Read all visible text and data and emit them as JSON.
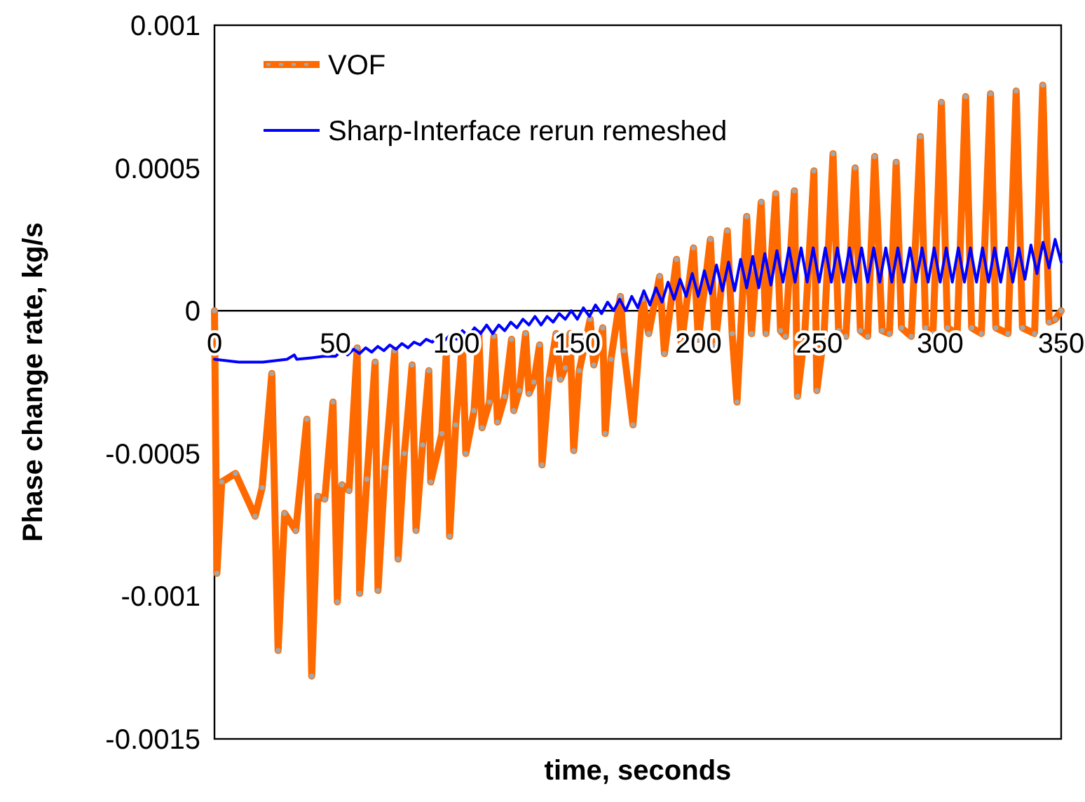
{
  "chart_data": {
    "type": "line",
    "xlabel": "time, seconds",
    "ylabel": "Phase change rate, kg/s",
    "xlim": [
      0,
      350
    ],
    "ylim": [
      -0.0015,
      0.001
    ],
    "xticks": [
      0,
      50,
      100,
      150,
      200,
      250,
      300,
      350
    ],
    "yticks": [
      -0.0015,
      -0.001,
      -0.0005,
      0,
      0.0005,
      0.001
    ],
    "grid": false,
    "legend": "top left",
    "series": [
      {
        "name": "VOF",
        "color": "#ff6a00",
        "marker": "circle",
        "x": [
          0,
          1,
          3,
          8.7,
          16.8,
          19.7,
          23.7,
          26.3,
          29,
          33.6,
          38.2,
          40.2,
          42.7,
          45.6,
          49,
          50.8,
          52.7,
          55.6,
          59,
          60,
          63,
          66.4,
          67.6,
          70.5,
          74.5,
          75.9,
          78.5,
          81.7,
          83.3,
          86,
          88.6,
          89.4,
          94,
          95.8,
          97.2,
          99.7,
          102.5,
          103.9,
          107.3,
          109.3,
          110.6,
          113.7,
          115.5,
          117,
          120,
          122.8,
          123.7,
          126,
          128.6,
          130,
          132,
          134.4,
          135.4,
          138.3,
          141.2,
          143,
          145,
          147,
          148.5,
          150.8,
          155.3,
          156.8,
          160.5,
          161.5,
          163.9,
          167.8,
          169.3,
          173,
          177,
          179.5,
          184,
          186,
          191,
          193,
          198,
          200,
          205,
          207,
          212,
          214,
          216,
          220,
          222,
          226,
          228,
          232,
          234,
          236,
          239.7,
          241,
          244,
          247.8,
          249,
          252,
          255.7,
          258,
          261,
          264.8,
          267,
          270,
          272.9,
          276,
          279,
          281.8,
          284,
          288,
          291.8,
          294,
          297,
          300.5,
          303,
          307,
          310.5,
          313,
          317,
          320.8,
          323,
          328,
          331.4,
          334,
          339,
          342.4,
          345,
          347.6,
          350
        ],
        "values": [
          0,
          -0.00092,
          -0.0006,
          -0.00057,
          -0.00072,
          -0.00062,
          -0.00022,
          -0.00119,
          -0.00071,
          -0.00077,
          -0.00038,
          -0.00128,
          -0.00065,
          -0.00066,
          -0.00032,
          -0.00102,
          -0.00061,
          -0.00063,
          -0.00013,
          -0.00099,
          -0.00059,
          -0.00018,
          -0.00098,
          -0.00055,
          -0.00014,
          -0.00087,
          -0.0005,
          -0.00019,
          -0.00077,
          -0.00047,
          -0.00021,
          -0.0006,
          -0.00043,
          -0.00015,
          -0.00079,
          -0.0004,
          -0.00011,
          -0.0005,
          -0.00035,
          -8e-05,
          -0.00041,
          -0.00032,
          -9e-05,
          -0.00039,
          -0.0003,
          -0.0001,
          -0.00035,
          -0.00028,
          -8e-05,
          -0.00029,
          -0.00025,
          -0.00012,
          -0.00054,
          -0.00024,
          -8e-05,
          -0.00024,
          -0.0002,
          -8e-05,
          -0.00049,
          -0.00021,
          -3e-05,
          -0.00019,
          -6e-05,
          -0.00043,
          -0.00017,
          5e-05,
          -0.00014,
          -0.0004,
          4e-05,
          -8e-05,
          0.00012,
          -0.00015,
          0.00018,
          -0.00012,
          0.00022,
          -0.0001,
          0.00025,
          -0.00012,
          0.00028,
          -8e-05,
          -0.00032,
          0.00033,
          -8e-05,
          0.00038,
          -8e-05,
          0.00041,
          -7e-05,
          -9e-05,
          0.00042,
          -0.0003,
          -8e-05,
          0.00049,
          -0.00028,
          -8e-05,
          0.00055,
          -7e-05,
          -9e-05,
          0.0005,
          -7e-05,
          -9e-05,
          0.00054,
          -7e-05,
          -8e-05,
          0.00052,
          -6e-05,
          -9e-05,
          0.00061,
          -6e-05,
          -8e-05,
          0.00073,
          -6e-05,
          -8e-05,
          0.00075,
          -6e-05,
          -8e-05,
          0.00076,
          -6e-05,
          -8e-05,
          0.00077,
          -6e-05,
          -8e-05,
          0.00079,
          -4e-05,
          -3e-05,
          0
        ]
      },
      {
        "name": "Sharp-Interface rerun remeshed",
        "color": "#0000ff",
        "marker": "none",
        "x": [
          0,
          10,
          20,
          30,
          33,
          34,
          40,
          45,
          50,
          52.5,
          55,
          57.5,
          60,
          62.5,
          65,
          67.5,
          70,
          72.5,
          75,
          77.5,
          80,
          82.5,
          85,
          87.5,
          90,
          92.5,
          95,
          97.5,
          100,
          102.5,
          105,
          107.5,
          110,
          112.5,
          115,
          117.5,
          120,
          122.5,
          125,
          127.5,
          130,
          132.5,
          135,
          137.5,
          140,
          142.5,
          145,
          147.5,
          150,
          152.5,
          155,
          157.5,
          160,
          162.5,
          165,
          167.5,
          170,
          172.5,
          175,
          177.5,
          180,
          182.5,
          185,
          187.5,
          190,
          192.5,
          195,
          197.5,
          200,
          202.5,
          205,
          207.5,
          210,
          212.5,
          215,
          217.5,
          220,
          222.5,
          225,
          227.5,
          230,
          232.5,
          235,
          237.5,
          240,
          242.5,
          245,
          247.5,
          250,
          252.5,
          255,
          257.5,
          260,
          262.5,
          265,
          267.5,
          270,
          272.5,
          275,
          277.5,
          280,
          282.5,
          285,
          287.5,
          290,
          292.5,
          295,
          297.5,
          300,
          302.5,
          305,
          307.5,
          310,
          312.5,
          315,
          317.5,
          320,
          322.5,
          325,
          327.5,
          330,
          332.5,
          335,
          337.5,
          340,
          342.5,
          345,
          347.5,
          350
        ],
        "values": [
          -0.00017,
          -0.00018,
          -0.00018,
          -0.00017,
          -0.000155,
          -0.00017,
          -0.000165,
          -0.00016,
          -0.00016,
          -0.00014,
          -0.000155,
          -0.000135,
          -0.00015,
          -0.00013,
          -0.000145,
          -0.000125,
          -0.00014,
          -0.00012,
          -0.000135,
          -0.000115,
          -0.00013,
          -0.00011,
          -0.00012,
          -0.0001,
          -0.00011,
          -9e-05,
          -0.000105,
          -8.5e-05,
          -0.0001,
          -7e-05,
          -9e-05,
          -6e-05,
          -8e-05,
          -5e-05,
          -8e-05,
          -5e-05,
          -7e-05,
          -4e-05,
          -6e-05,
          -3e-05,
          -5e-05,
          -2e-05,
          -5e-05,
          -2e-05,
          -4e-05,
          -1e-05,
          -3e-05,
          0,
          -3e-05,
          1e-05,
          -2e-05,
          2e-05,
          -1e-05,
          3e-05,
          0,
          4e-05,
          0,
          5e-05,
          1e-05,
          7e-05,
          2e-05,
          8e-05,
          3e-05,
          0.0001,
          4e-05,
          0.00011,
          5e-05,
          0.00013,
          5e-05,
          0.00014,
          6e-05,
          0.00016,
          7e-05,
          0.00017,
          7e-05,
          0.00018,
          8e-05,
          0.00019,
          8e-05,
          0.0002,
          9e-05,
          0.00021,
          0.0001,
          0.00022,
          0.0001,
          0.00022,
          0.0001,
          0.00022,
          0.0001,
          0.00022,
          0.0001,
          0.00022,
          0.0001,
          0.00022,
          0.0001,
          0.00022,
          0.0001,
          0.00022,
          0.0001,
          0.00022,
          0.0001,
          0.00022,
          0.0001,
          0.00022,
          0.0001,
          0.00022,
          0.0001,
          0.00022,
          0.0001,
          0.00022,
          0.0001,
          0.00022,
          0.0001,
          0.00022,
          0.0001,
          0.00022,
          0.0001,
          0.00022,
          0.0001,
          0.00022,
          0.0001,
          0.00022,
          0.00011,
          0.00023,
          0.00013,
          0.00024,
          0.00015,
          0.00025,
          0.00017
        ]
      }
    ]
  }
}
